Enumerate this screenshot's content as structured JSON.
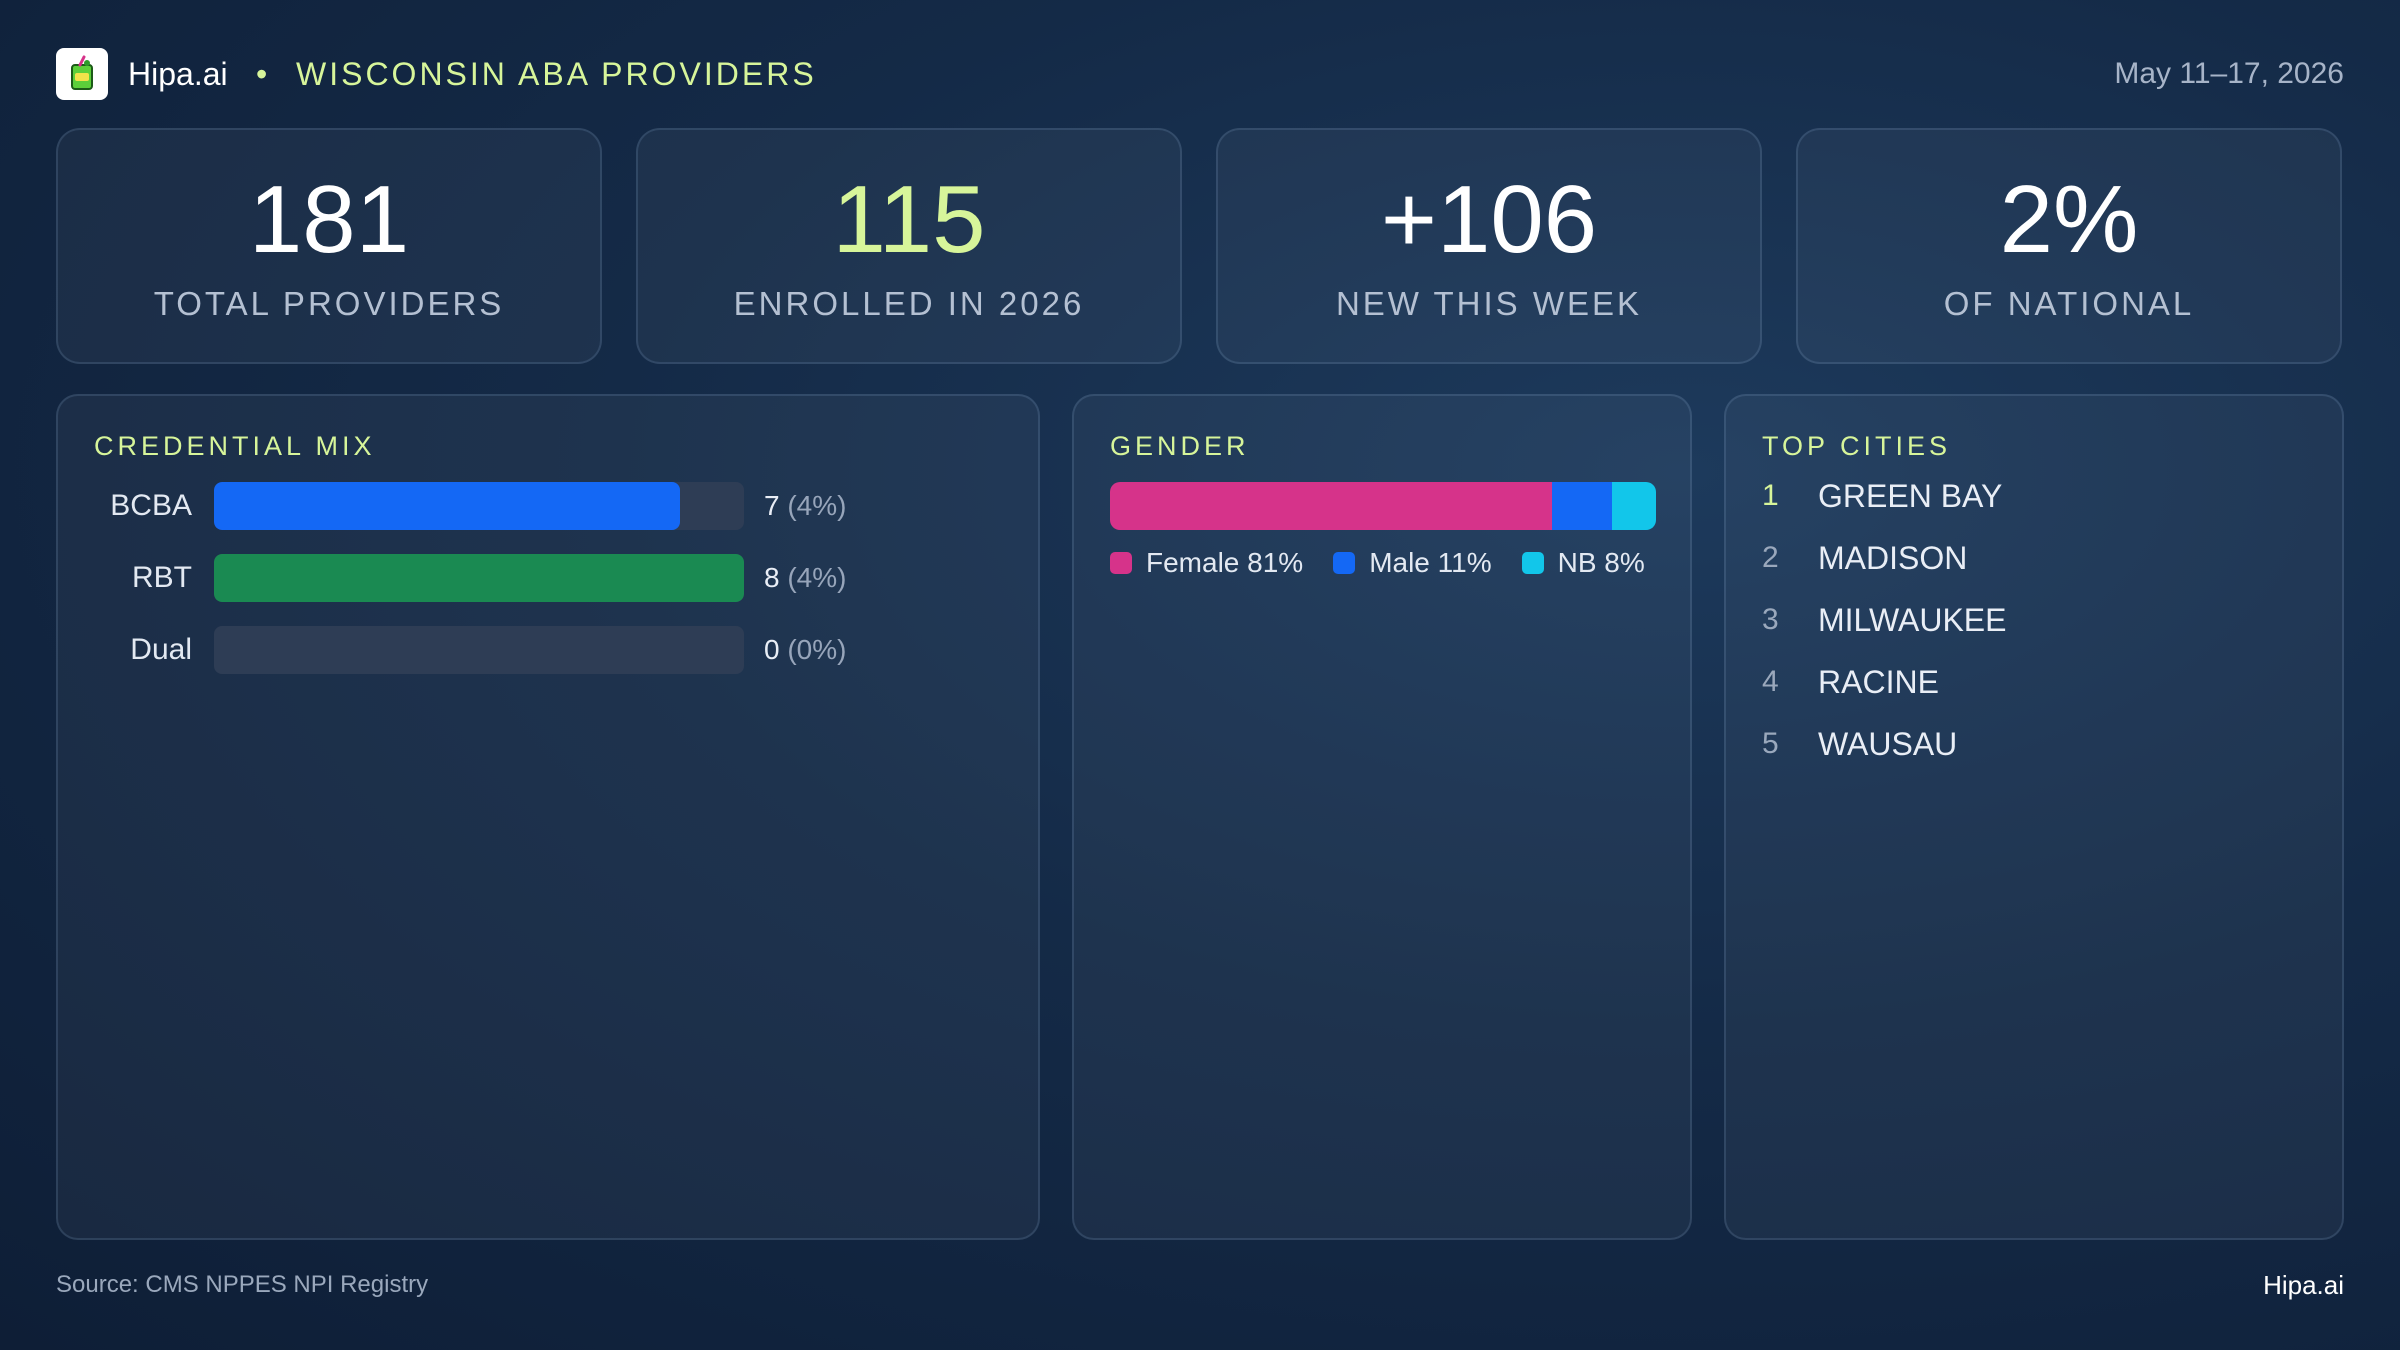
{
  "header": {
    "brand": "Hipa.ai",
    "separator": "•",
    "title": "WISCONSIN ABA PROVIDERS",
    "date_range": "May 11–17, 2026",
    "logo_icon": "green-drink-icon"
  },
  "stats": [
    {
      "value": "181",
      "label": "TOTAL PROVIDERS"
    },
    {
      "value": "115",
      "label": "ENROLLED IN 2026"
    },
    {
      "value": "+106",
      "label": "NEW THIS WEEK"
    },
    {
      "value": "2%",
      "label": "OF NATIONAL"
    }
  ],
  "credential_mix": {
    "title": "CREDENTIAL MIX",
    "rows": [
      {
        "label": "BCBA",
        "count": "7",
        "pct": "(4%)",
        "fill": 0.88,
        "color": "#1468f5"
      },
      {
        "label": "RBT",
        "count": "8",
        "pct": "(4%)",
        "fill": 1.0,
        "color": "#1a8a52"
      },
      {
        "label": "Dual",
        "count": "0",
        "pct": "(0%)",
        "fill": 0.0,
        "color": "#1468f5"
      }
    ]
  },
  "gender": {
    "title": "GENDER",
    "segments": [
      {
        "label": "Female 81%",
        "share": 81,
        "color": "#d6338a"
      },
      {
        "label": "Male 11%",
        "share": 11,
        "color": "#1468f5"
      },
      {
        "label": "NB 8%",
        "share": 8,
        "color": "#12c6ea"
      }
    ]
  },
  "top_cities": {
    "title": "TOP CITIES",
    "items": [
      {
        "rank": "1",
        "name": "GREEN BAY"
      },
      {
        "rank": "2",
        "name": "MADISON"
      },
      {
        "rank": "3",
        "name": "MILWAUKEE"
      },
      {
        "rank": "4",
        "name": "RACINE"
      },
      {
        "rank": "5",
        "name": "WAUSAU"
      }
    ],
    "first_rank_color": "#d7f59a",
    "rank_color": "#9aa8bc"
  },
  "footer": {
    "source": "Source: CMS NPPES NPI Registry",
    "brand": "Hipa.ai"
  }
}
